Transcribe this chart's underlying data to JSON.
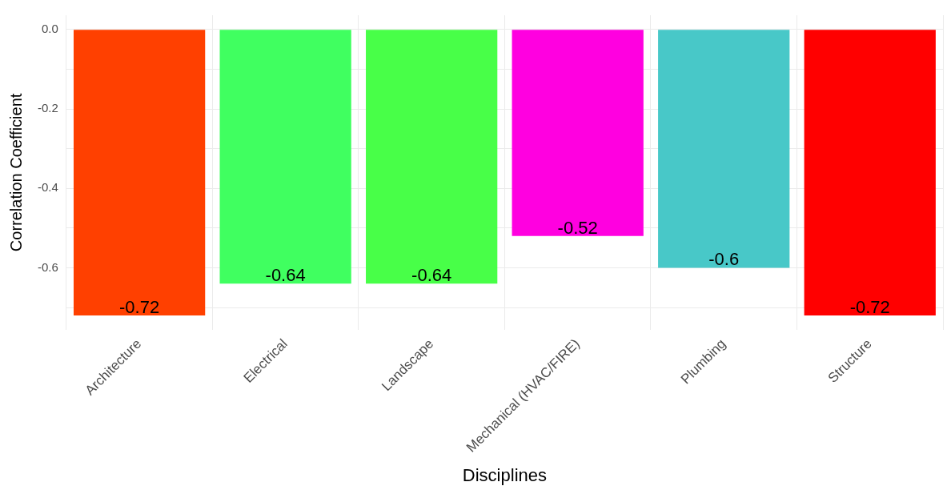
{
  "chart_data": {
    "type": "bar",
    "xlabel": "Disciplines",
    "ylabel": "Correlation Coefficient",
    "categories": [
      "Architecture",
      "Electrical",
      "Landscape",
      "Mechanical (HVAC/FIRE)",
      "Plumbing",
      "Structure"
    ],
    "values": [
      -0.72,
      -0.64,
      -0.64,
      -0.52,
      -0.6,
      -0.72
    ],
    "colors": [
      "#ff4000",
      "#40ff60",
      "#48ff48",
      "#ff00e0",
      "#48c8c8",
      "#ff0000"
    ],
    "ylim": [
      -0.756,
      0.036
    ],
    "yticks": [
      {
        "value": 0,
        "label": "0.0"
      },
      {
        "value": -0.1,
        "label": null
      },
      -0.2,
      {
        "value": -0.3,
        "label": null
      },
      -0.4,
      {
        "value": -0.5,
        "label": null
      },
      -0.6,
      {
        "value": -0.7,
        "label": null
      }
    ],
    "grid": true,
    "data_labels": true,
    "legend": false
  }
}
